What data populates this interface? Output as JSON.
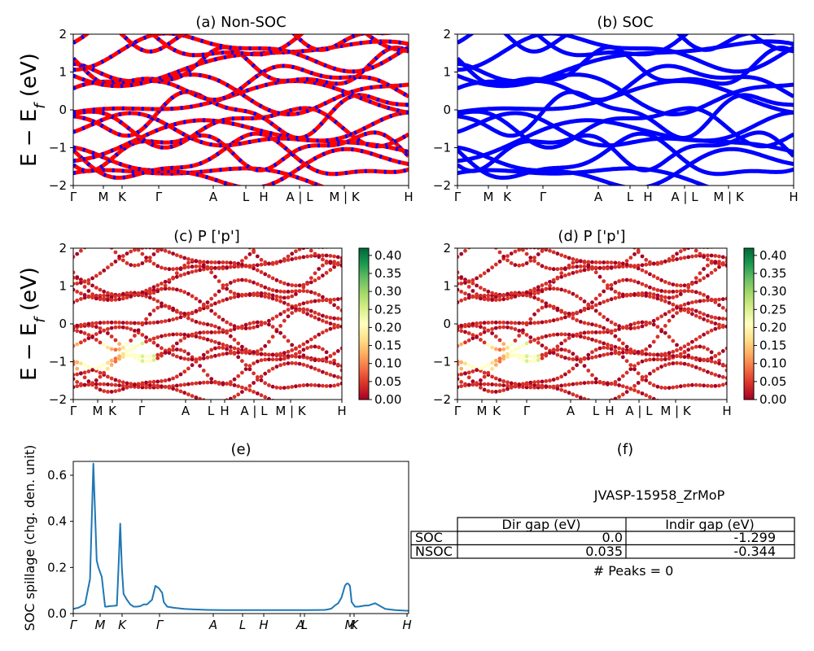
{
  "chart_data": [
    {
      "id": "a",
      "type": "line",
      "title": "(a) Non-SOC",
      "ylabel": "E − E_f (eV)",
      "ylim": [
        -2,
        2
      ],
      "yticks": [
        "2",
        "1",
        "0",
        "−1",
        "−2"
      ],
      "xtick_labels": [
        "Γ",
        "M",
        "K",
        "Γ",
        "A",
        "L",
        "H",
        "A | L",
        "M | K",
        "H"
      ],
      "series": [
        {
          "name": "",
          "color": "#ff0000",
          "dash_color": "#0000ff"
        }
      ]
    },
    {
      "id": "b",
      "type": "line",
      "title": "(b) SOC",
      "ylim": [
        -2,
        2
      ],
      "yticks": [
        "2",
        "1",
        "0",
        "−1",
        "−2"
      ],
      "xtick_labels": [
        "Γ",
        "M",
        "K",
        "Γ",
        "A",
        "L",
        "H",
        "A | L",
        "M | K",
        "H"
      ],
      "series": [
        {
          "name": "",
          "color": "#0000ff"
        }
      ]
    },
    {
      "id": "c",
      "type": "scatter",
      "title": "(c)  P ['p']",
      "ylabel": "E − E_f (eV)",
      "ylim": [
        -2,
        2
      ],
      "yticks": [
        "2",
        "1",
        "0",
        "−1",
        "−2"
      ],
      "xtick_labels": [
        "Γ",
        "M",
        "K",
        "Γ",
        "A",
        "L",
        "H",
        "A | L",
        "M | K",
        "H"
      ],
      "colorbar": {
        "range": [
          0,
          0.42
        ],
        "ticks": [
          "0.40",
          "0.35",
          "0.30",
          "0.25",
          "0.20",
          "0.15",
          "0.10",
          "0.05",
          "0.00"
        ],
        "colormap": "RdYlGn"
      }
    },
    {
      "id": "d",
      "type": "scatter",
      "title": "(d) P ['p']",
      "ylim": [
        -2,
        2
      ],
      "yticks": [
        "2",
        "1",
        "0",
        "−1",
        "−2"
      ],
      "xtick_labels": [
        "Γ",
        "M",
        "K",
        "Γ",
        "A",
        "L",
        "H",
        "A | L",
        "M | K",
        "H"
      ],
      "colorbar": {
        "range": [
          0,
          0.42
        ],
        "ticks": [
          "0.40",
          "0.35",
          "0.30",
          "0.25",
          "0.20",
          "0.15",
          "0.10",
          "0.05",
          "0.00"
        ],
        "colormap": "RdYlGn"
      }
    },
    {
      "id": "e",
      "type": "line",
      "title": "(e)",
      "ylabel": "SOC spillage (chg. den. unit)",
      "ylim": [
        0,
        0.66
      ],
      "yticks": [
        "0.6",
        "0.4",
        "0.2",
        "0.0"
      ],
      "xtick_labels": [
        "Γ",
        "M",
        "K",
        "Γ",
        "A",
        "L",
        "H",
        "A",
        "L",
        "M",
        "K",
        "H"
      ],
      "series": [
        {
          "name": "",
          "color": "#1f77b4",
          "x": [
            0,
            0.015,
            0.035,
            0.05,
            0.06,
            0.07,
            0.075,
            0.085,
            0.095,
            0.1,
            0.108,
            0.118,
            0.13,
            0.135,
            0.14,
            0.145,
            0.15,
            0.16,
            0.17,
            0.18,
            0.19,
            0.2,
            0.21,
            0.22,
            0.235,
            0.245,
            0.255,
            0.265,
            0.27,
            0.28,
            0.3,
            0.33,
            0.36,
            0.4,
            0.45,
            0.5,
            0.55,
            0.6,
            0.65,
            0.7,
            0.75,
            0.76,
            0.77,
            0.78,
            0.79,
            0.8,
            0.81,
            0.815,
            0.82,
            0.825,
            0.83,
            0.84,
            0.85,
            0.86,
            0.87,
            0.88,
            0.89,
            0.9,
            0.93,
            0.96,
            1.0
          ],
          "y": [
            0.02,
            0.025,
            0.04,
            0.15,
            0.65,
            0.23,
            0.2,
            0.16,
            0.03,
            0.03,
            0.032,
            0.033,
            0.035,
            0.2,
            0.39,
            0.2,
            0.085,
            0.06,
            0.04,
            0.03,
            0.03,
            0.032,
            0.04,
            0.04,
            0.06,
            0.12,
            0.11,
            0.09,
            0.05,
            0.03,
            0.025,
            0.02,
            0.018,
            0.016,
            0.015,
            0.015,
            0.015,
            0.015,
            0.015,
            0.015,
            0.016,
            0.018,
            0.022,
            0.035,
            0.045,
            0.07,
            0.12,
            0.13,
            0.13,
            0.12,
            0.05,
            0.03,
            0.03,
            0.032,
            0.035,
            0.035,
            0.04,
            0.045,
            0.02,
            0.015,
            0.012
          ]
        }
      ]
    }
  ],
  "info_panel": {
    "title": "(f)",
    "material": "JVASP-15958_ZrMoP",
    "columns": [
      "Dir gap (eV)",
      "Indir gap (eV)"
    ],
    "rows": [
      {
        "label": "SOC",
        "dir": "0.0",
        "indir": "-1.299"
      },
      {
        "label": "NSOC",
        "dir": "0.035",
        "indir": "-0.344"
      }
    ],
    "peaks_text": "# Peaks = 0"
  }
}
